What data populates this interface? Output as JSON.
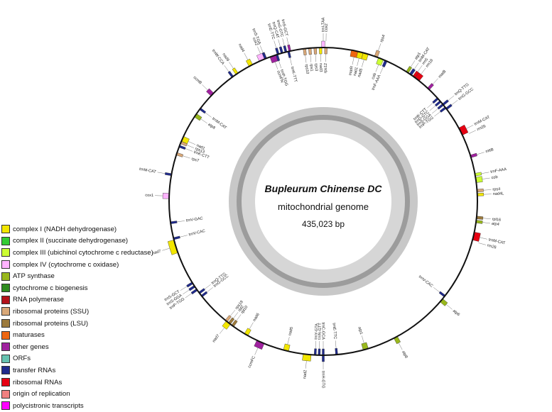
{
  "center": {
    "title": "Bupleurum Chinense DC",
    "subtitle": "mitochondrial genome",
    "length": "435,023 bp"
  },
  "legend": [
    {
      "label": "complex I (NADH dehydrogenase)",
      "color": "#f2e600"
    },
    {
      "label": "complex II (succinate dehydrogenase)",
      "color": "#33cc33"
    },
    {
      "label": "complex III (ubichinol cytochrome c reductase)",
      "color": "#ccff33"
    },
    {
      "label": "complex IV (cytochrome c oxidase)",
      "color": "#ffb3ff"
    },
    {
      "label": "ATP synthase",
      "color": "#99b81c"
    },
    {
      "label": "cytochrome c biogenesis",
      "color": "#2f8c1f"
    },
    {
      "label": "RNA polymerase",
      "color": "#b3111a"
    },
    {
      "label": "ribosomal proteins (SSU)",
      "color": "#d9a878"
    },
    {
      "label": "ribosomal proteins (LSU)",
      "color": "#9c7a3c"
    },
    {
      "label": "maturases",
      "color": "#ee6611"
    },
    {
      "label": "other genes",
      "color": "#a0229f"
    },
    {
      "label": "ORFs",
      "color": "#66c2b0"
    },
    {
      "label": "transfer RNAs",
      "color": "#1f2a8c"
    },
    {
      "label": "ribosomal RNAs",
      "color": "#e60012"
    },
    {
      "label": "origin of replication",
      "color": "#f08080"
    },
    {
      "label": "polycistronic transcripts",
      "color": "#ff00ff"
    }
  ],
  "genes": [
    {
      "name": "trnI-TAA",
      "angle": 0,
      "span": 1.2,
      "out": true,
      "color": "#ffb3ff"
    },
    {
      "name": "cox2",
      "angle": 1,
      "span": 0,
      "out": true,
      "color": "#ffb3ff"
    },
    {
      "name": "rps10",
      "angle": 353,
      "span": 1,
      "out": false,
      "color": "#d9a878"
    },
    {
      "name": "rps1",
      "angle": 355,
      "span": 1,
      "out": false,
      "color": "#d9a878"
    },
    {
      "name": "rps3",
      "angle": 357,
      "span": 1,
      "out": false,
      "color": "#d9a878"
    },
    {
      "name": "nad3",
      "angle": 359,
      "span": 1,
      "out": false,
      "color": "#f2e600"
    },
    {
      "name": "rps12",
      "angle": 361,
      "span": 1,
      "out": false,
      "color": "#d9a878"
    },
    {
      "name": "matR",
      "angle": 12,
      "span": 3,
      "out": false,
      "color": "#ee6611"
    },
    {
      "name": "nad1",
      "angle": 14,
      "span": 2,
      "out": false,
      "color": "#f2e600"
    },
    {
      "name": "nad5",
      "angle": 16,
      "span": 2,
      "out": false,
      "color": "#f2e600"
    },
    {
      "name": "rps4",
      "angle": 20,
      "span": 1.2,
      "out": true,
      "color": "#d9a878"
    },
    {
      "name": "cob",
      "angle": 22,
      "span": 2,
      "out": false,
      "color": "#ccff33"
    },
    {
      "name": "trnF-AAA",
      "angle": 24,
      "span": 1,
      "out": false,
      "color": "#1f2a8c"
    },
    {
      "name": "atp1",
      "angle": 33,
      "span": 1,
      "out": true,
      "color": "#99b81c"
    },
    {
      "name": "trnM-CAT",
      "angle": 34.5,
      "span": 1,
      "out": true,
      "color": "#1f2a8c"
    },
    {
      "name": "rrn5",
      "angle": 36,
      "span": 1,
      "out": true,
      "color": "#e60012"
    },
    {
      "name": "rrn18",
      "angle": 37.5,
      "span": 2,
      "out": true,
      "color": "#e60012"
    },
    {
      "name": "matB",
      "angle": 43,
      "span": 1,
      "out": true,
      "color": "#a0229f"
    },
    {
      "name": "trnQ-TTG",
      "angle": 51,
      "span": 0.8,
      "out": true,
      "color": "#1f2a8c"
    },
    {
      "name": "trnG-GCC",
      "angle": 53,
      "span": 0.8,
      "out": true,
      "color": "#1f2a8c"
    },
    {
      "name": "trnK-CTT",
      "angle": 48,
      "span": 0.8,
      "out": false,
      "color": "#1f2a8c"
    },
    {
      "name": "trnD-GTC",
      "angle": 49.5,
      "span": 0.8,
      "out": false,
      "color": "#1f2a8c"
    },
    {
      "name": "trnS-GGA",
      "angle": 51,
      "span": 0.8,
      "out": false,
      "color": "#1f2a8c"
    },
    {
      "name": "trnP-TGG",
      "angle": 52.5,
      "span": 0.8,
      "out": false,
      "color": "#1f2a8c"
    },
    {
      "name": "trnM-CAT",
      "angle": 63,
      "span": 3,
      "out": true,
      "color": "#e60012"
    },
    {
      "name": "rrn26",
      "angle": 65,
      "span": 0,
      "out": true,
      "color": "#e60012"
    },
    {
      "name": "mttB",
      "angle": 73,
      "span": 1,
      "out": true,
      "color": "#a0229f"
    },
    {
      "name": "trnF-AAA",
      "angle": 80,
      "span": 1,
      "out": true,
      "color": "#ccff33"
    },
    {
      "name": "cob",
      "angle": 82,
      "span": 2,
      "out": true,
      "color": "#ccff33"
    },
    {
      "name": "rps4",
      "angle": 86,
      "span": 1,
      "out": true,
      "color": "#d9a878"
    },
    {
      "name": "nad4L",
      "angle": 87.5,
      "span": 1,
      "out": true,
      "color": "#f2e600"
    },
    {
      "name": "rpl16",
      "angle": 96,
      "span": 1,
      "out": true,
      "color": "#9c7a3c"
    },
    {
      "name": "atp4",
      "angle": 97.5,
      "span": 1,
      "out": true,
      "color": "#99b81c"
    },
    {
      "name": "trnM-CAT",
      "angle": 103,
      "span": 3,
      "out": true,
      "color": "#e60012"
    },
    {
      "name": "rrn26",
      "angle": 105,
      "span": 0,
      "out": true,
      "color": "#e60012"
    },
    {
      "name": "atp6",
      "angle": 130,
      "span": 1.5,
      "out": true,
      "color": "#99b81c"
    },
    {
      "name": "trnV-CAC",
      "angle": 128,
      "span": 0.8,
      "out": false,
      "color": "#1f2a8c"
    },
    {
      "name": "atp8",
      "angle": 152,
      "span": 1.5,
      "out": true,
      "color": "#99b81c"
    },
    {
      "name": "atp1",
      "angle": 164,
      "span": 2,
      "out": false,
      "color": "#99b81c"
    },
    {
      "name": "trnE-TTC",
      "angle": 175,
      "span": 0.8,
      "out": false,
      "color": "#1f2a8c"
    },
    {
      "name": "trnH-GTG",
      "angle": 180,
      "span": 0.8,
      "out": true,
      "color": "#1f2a8c"
    },
    {
      "name": "nad2",
      "angle": 186,
      "span": 3,
      "out": true,
      "color": "#f2e600"
    },
    {
      "name": "trnY-GTA",
      "angle": 183,
      "span": 0.8,
      "out": false,
      "color": "#1f2a8c"
    },
    {
      "name": "trnN-GTT",
      "angle": 181.5,
      "span": 0.8,
      "out": false,
      "color": "#1f2a8c"
    },
    {
      "name": "trnC-GCA",
      "angle": 180,
      "span": 0.8,
      "out": false,
      "color": "#1f2a8c"
    },
    {
      "name": "nad5",
      "angle": 194,
      "span": 2,
      "out": false,
      "color": "#f2e600"
    },
    {
      "name": "ccmFC",
      "angle": 204,
      "span": 3,
      "out": true,
      "color": "#a0229f"
    },
    {
      "name": "nad6",
      "angle": 210,
      "span": 1.5,
      "out": false,
      "color": "#f2e600"
    },
    {
      "name": "nad7",
      "angle": 218,
      "span": 2,
      "out": true,
      "color": "#f2e600"
    },
    {
      "name": "rpl10",
      "angle": 216,
      "span": 1,
      "out": false,
      "color": "#9c7a3c"
    },
    {
      "name": "rpl2",
      "angle": 217.5,
      "span": 1,
      "out": false,
      "color": "#9c7a3c"
    },
    {
      "name": "rps19",
      "angle": 219,
      "span": 1,
      "out": false,
      "color": "#d9a878"
    },
    {
      "name": "trnG-GCC",
      "angle": 232,
      "span": 0.8,
      "out": false,
      "color": "#1f2a8c"
    },
    {
      "name": "trnQ-TTG",
      "angle": 233.5,
      "span": 0.8,
      "out": false,
      "color": "#1f2a8c"
    },
    {
      "name": "trnP-TGG",
      "angle": 235,
      "span": 0.8,
      "out": true,
      "color": "#1f2a8c"
    },
    {
      "name": "trnS-GGA",
      "angle": 236.5,
      "span": 0.8,
      "out": true,
      "color": "#1f2a8c"
    },
    {
      "name": "trnS-GCT",
      "angle": 238,
      "span": 0.8,
      "out": true,
      "color": "#1f2a8c"
    },
    {
      "name": "nad7",
      "angle": 253,
      "span": 5,
      "out": true,
      "color": "#f2e600"
    },
    {
      "name": "trnV-CAC",
      "angle": 256,
      "span": 0.8,
      "out": false,
      "color": "#1f2a8c"
    },
    {
      "name": "trnV-GAC",
      "angle": 262,
      "span": 0.8,
      "out": false,
      "color": "#1f2a8c"
    },
    {
      "name": "cox1",
      "angle": 272,
      "span": 2,
      "out": true,
      "color": "#ffb3ff"
    },
    {
      "name": "trnM-CAT",
      "angle": 280,
      "span": 0.8,
      "out": true,
      "color": "#1f2a8c"
    },
    {
      "name": "rps7",
      "angle": 288,
      "span": 1,
      "out": false,
      "color": "#d9a878"
    },
    {
      "name": "trnK-CTT",
      "angle": 291,
      "span": 0.8,
      "out": false,
      "color": "#1f2a8c"
    },
    {
      "name": "rps13",
      "angle": 292.5,
      "span": 1,
      "out": false,
      "color": "#d9a878"
    },
    {
      "name": "nad1",
      "angle": 294,
      "span": 2,
      "out": false,
      "color": "#f2e600"
    },
    {
      "name": "atp8",
      "angle": 304,
      "span": 1.5,
      "out": false,
      "color": "#99b81c"
    },
    {
      "name": "trnM-CAT",
      "angle": 307,
      "span": 0.8,
      "out": false,
      "color": "#1f2a8c"
    },
    {
      "name": "ccmB",
      "angle": 314,
      "span": 1.5,
      "out": true,
      "color": "#a0229f"
    },
    {
      "name": "trnW-CCA",
      "angle": 324,
      "span": 0.8,
      "out": true,
      "color": "#1f2a8c"
    },
    {
      "name": "nad9",
      "angle": 326,
      "span": 1,
      "out": true,
      "color": "#f2e600"
    },
    {
      "name": "nad4",
      "angle": 332,
      "span": 1.5,
      "out": true,
      "color": "#f2e600"
    },
    {
      "name": "cox2",
      "angle": 337,
      "span": 3,
      "out": true,
      "color": "#ffb3ff"
    },
    {
      "name": "trnS-TGA",
      "angle": 338,
      "span": 0.8,
      "out": true,
      "color": "#1f2a8c"
    },
    {
      "name": "ccmFN",
      "angle": 341,
      "span": 2.5,
      "out": false,
      "color": "#a0229f"
    },
    {
      "name": "trnP-TGG",
      "angle": 342.5,
      "span": 0.8,
      "out": false,
      "color": "#1f2a8c"
    },
    {
      "name": "trnK-TTT",
      "angle": 347,
      "span": 0.8,
      "out": false,
      "color": "#1f2a8c"
    },
    {
      "name": "trnE-TTC",
      "angle": 343,
      "span": 0.8,
      "out": true,
      "color": "#1f2a8c"
    },
    {
      "name": "trnQ-CAT",
      "angle": 344.5,
      "span": 0.8,
      "out": true,
      "color": "#1f2a8c"
    },
    {
      "name": "trnG-GTC",
      "angle": 346,
      "span": 0.8,
      "out": true,
      "color": "#1f2a8c"
    },
    {
      "name": "trnS-GCT",
      "angle": 347.5,
      "span": 0.8,
      "out": true,
      "color": "#a0229f"
    }
  ]
}
